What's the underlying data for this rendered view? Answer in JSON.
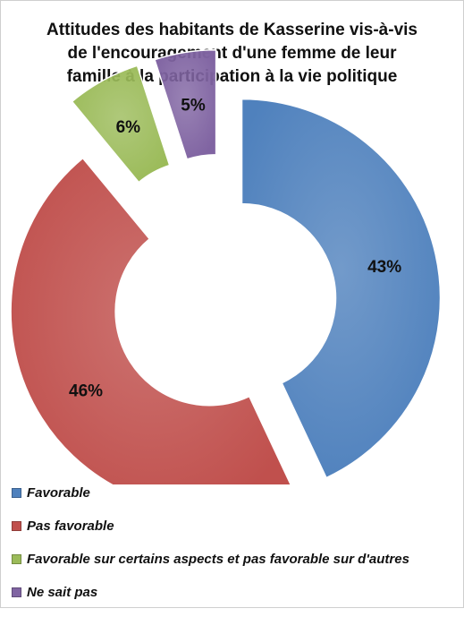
{
  "chart_data": {
    "type": "pie",
    "title": [
      "Attitudes des habitants de Kasserine vis-à-vis",
      "de l'encouragement d'une femme de leur",
      "famille à la participation à la vie politique"
    ],
    "categories": [
      "Favorable",
      "Pas favorable",
      "Favorable sur certains aspects et pas favorable sur d'autres",
      "Ne sait pas"
    ],
    "values": [
      43,
      46,
      6,
      5
    ],
    "data_labels": [
      "43%",
      "46%",
      "6%",
      "5%"
    ],
    "colors": [
      "#4f81bd",
      "#c0504d",
      "#9bbb59",
      "#8064a2"
    ],
    "legend_position": "bottom-left"
  }
}
